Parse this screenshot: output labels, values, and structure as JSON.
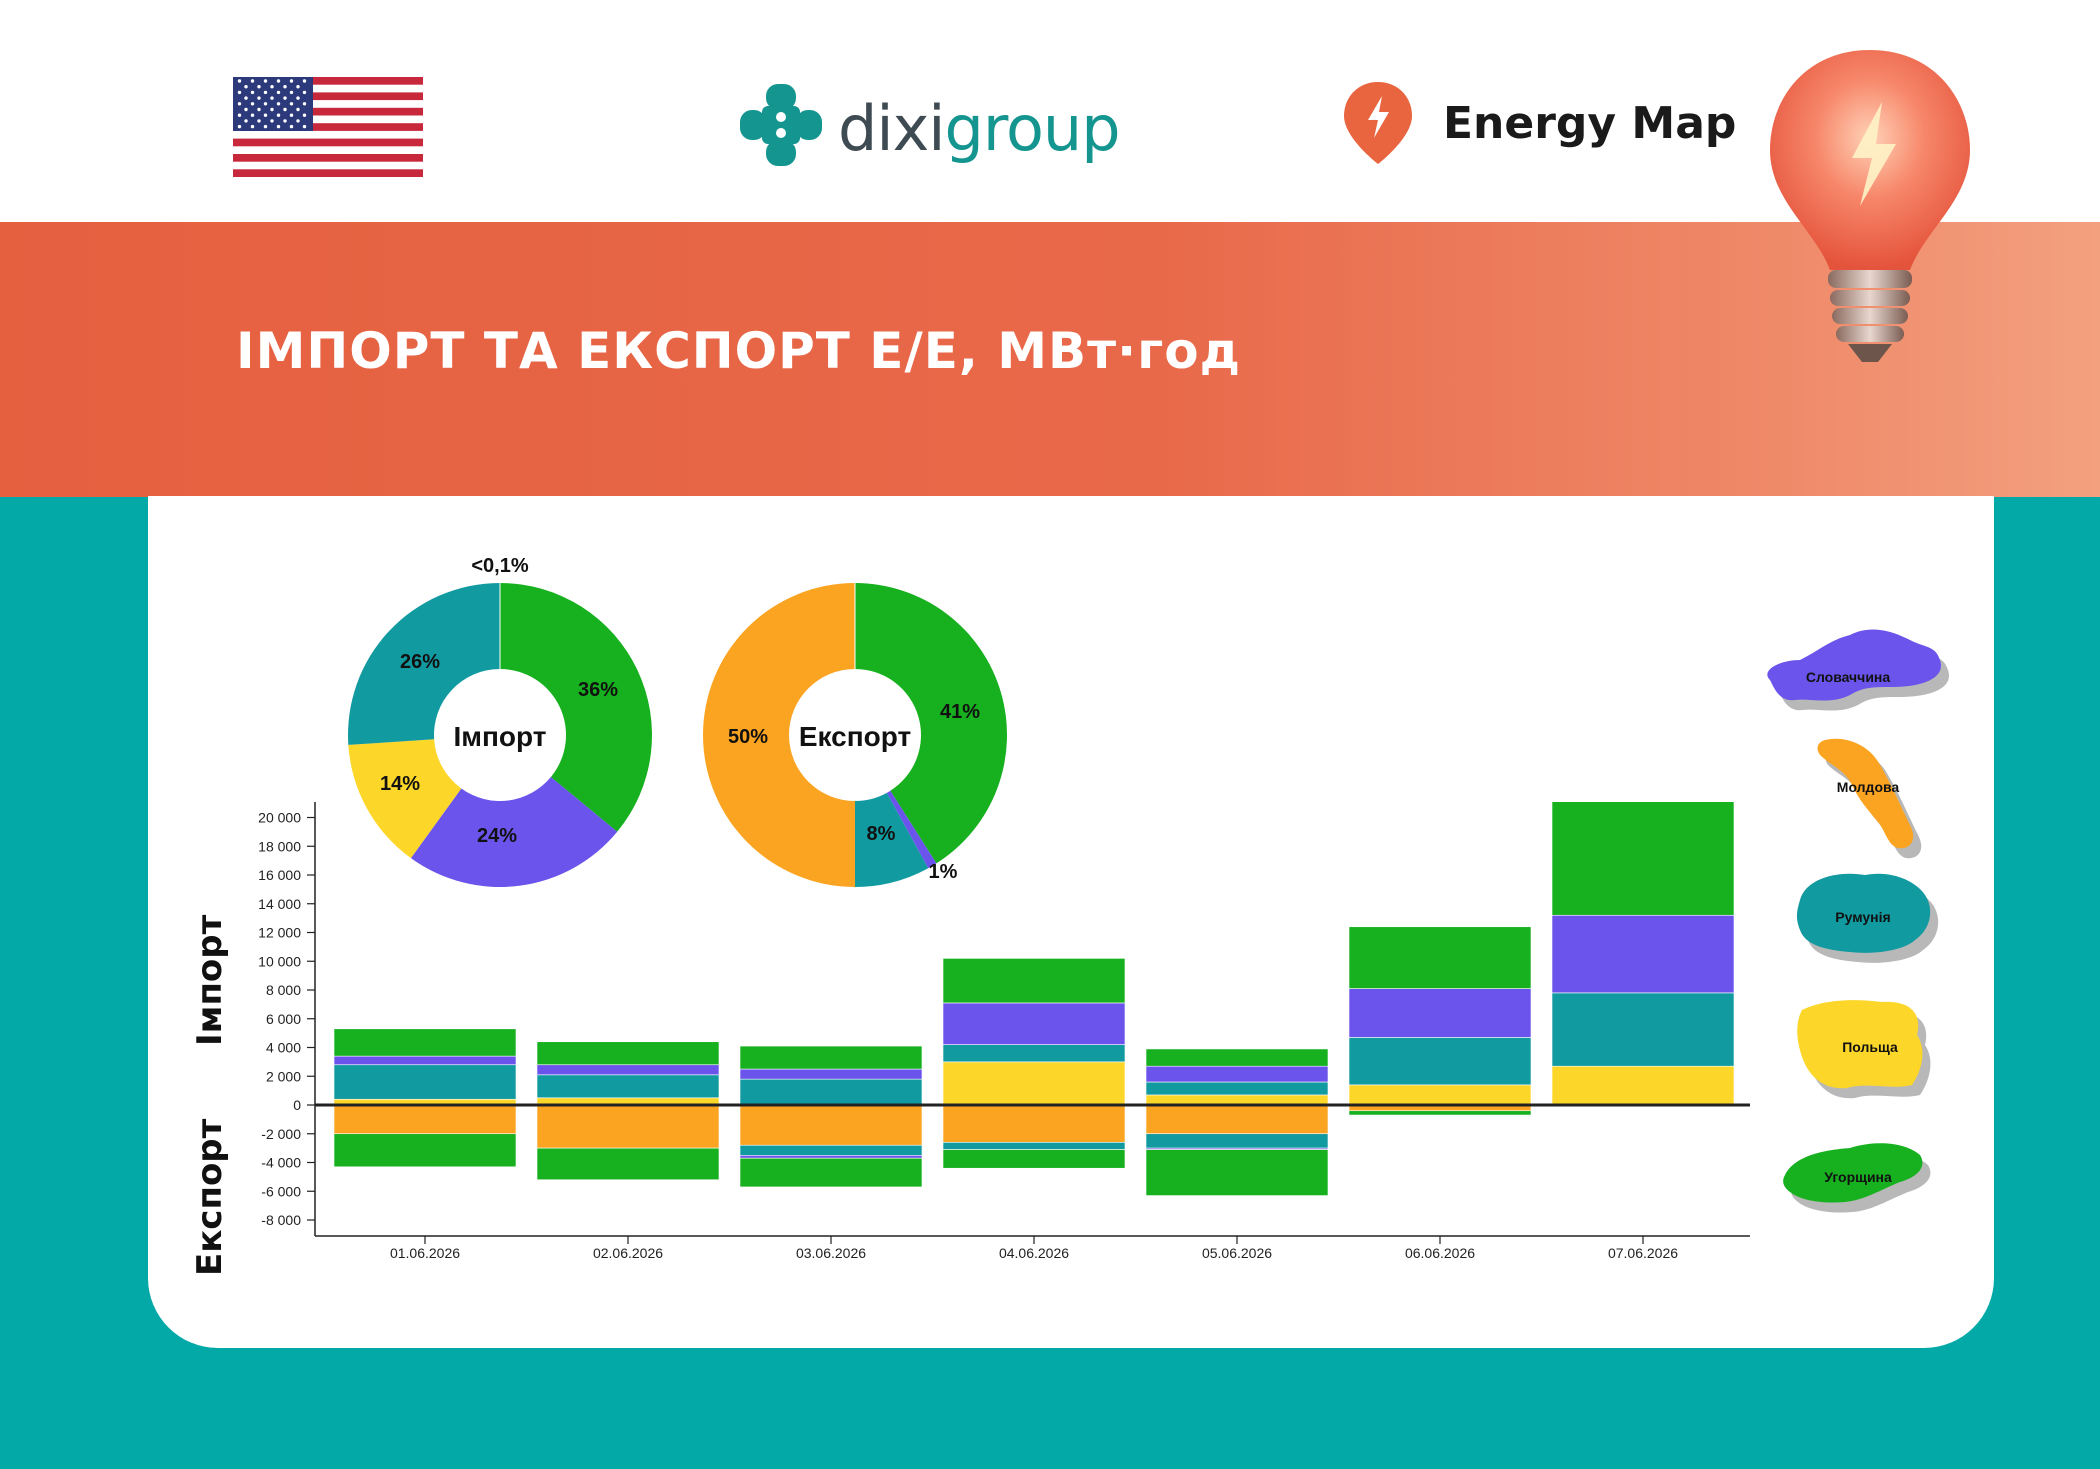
{
  "header": {
    "logo_prefix": "dixi",
    "logo_suffix": "group",
    "energy_map_label": "Energy Map",
    "flag_icon": "us-flag-icon",
    "bulb_icon": "light-bulb-icon"
  },
  "banner": {
    "title": "ІМПОРТ ТА ЕКСПОРТ Е/Е, МВт·год"
  },
  "colors": {
    "banner": "#e8694a",
    "teal_background": "#03a9a7",
    "Словаччина": "#6b54ec",
    "Молдова": "#fba422",
    "Румунія": "#129aa1",
    "Польща": "#fdd62a",
    "Угорщина": "#17b01f"
  },
  "donuts": [
    {
      "center_label": "Імпорт",
      "slices": [
        {
          "country": "Словаччина",
          "value": 24,
          "label": "24%"
        },
        {
          "country": "Польща",
          "value": 14,
          "label": "14%"
        },
        {
          "country": "Румунія",
          "value": 26,
          "label": "26%"
        },
        {
          "country": "Молдова",
          "value": 0.05,
          "label": "<0,1%"
        },
        {
          "country": "Угорщина",
          "value": 36,
          "label": "36%"
        }
      ]
    },
    {
      "center_label": "Експорт",
      "slices": [
        {
          "country": "Угорщина",
          "value": 41,
          "label": "41%"
        },
        {
          "country": "Словаччина",
          "value": 1,
          "label": "1%"
        },
        {
          "country": "Румунія",
          "value": 8,
          "label": "8%"
        },
        {
          "country": "Молдова",
          "value": 50,
          "label": "50%"
        }
      ]
    }
  ],
  "chart_data": {
    "type": "bar",
    "stacked": true,
    "categories": [
      "01.06.2026",
      "02.06.2026",
      "03.06.2026",
      "04.06.2026",
      "05.06.2026",
      "06.06.2026",
      "07.06.2026"
    ],
    "ylabel_import": "Імпорт",
    "ylabel_export": "Експорт",
    "ylim": [
      -9000,
      21000
    ],
    "yticks": [
      20000,
      18000,
      16000,
      14000,
      12000,
      10000,
      8000,
      6000,
      4000,
      2000,
      0,
      -2000,
      -4000,
      -6000,
      -8000
    ],
    "ytick_labels": [
      "20 000",
      "18 000",
      "16 000",
      "14 000",
      "12 000",
      "10 000",
      "8 000",
      "6 000",
      "4 000",
      "2 000",
      "0",
      "-2 000",
      "-4 000",
      "-6 000",
      "-8 000"
    ],
    "import_series": [
      {
        "name": "Польща",
        "values": [
          400,
          500,
          0,
          3000,
          700,
          1400,
          2700
        ]
      },
      {
        "name": "Румунія",
        "values": [
          2400,
          1600,
          1800,
          1200,
          900,
          3300,
          5100
        ]
      },
      {
        "name": "Словаччина",
        "values": [
          600,
          700,
          700,
          2900,
          1100,
          3400,
          5400
        ]
      },
      {
        "name": "Угорщина",
        "values": [
          1900,
          1600,
          1600,
          3100,
          1200,
          4300,
          7900
        ]
      }
    ],
    "export_series": [
      {
        "name": "Молдова",
        "values": [
          -2000,
          -3000,
          -2800,
          -2600,
          -2000,
          -400,
          0
        ]
      },
      {
        "name": "Румунія",
        "values": [
          0,
          0,
          -700,
          -500,
          -1000,
          0,
          0
        ]
      },
      {
        "name": "Словаччина",
        "values": [
          0,
          0,
          -200,
          0,
          -100,
          0,
          0
        ]
      },
      {
        "name": "Угорщина",
        "values": [
          -2300,
          -2200,
          -2000,
          -1300,
          -3200,
          -300,
          0
        ]
      }
    ]
  },
  "legend": [
    {
      "country": "Словаччина"
    },
    {
      "country": "Молдова"
    },
    {
      "country": "Румунія"
    },
    {
      "country": "Польща"
    },
    {
      "country": "Угорщина"
    }
  ]
}
